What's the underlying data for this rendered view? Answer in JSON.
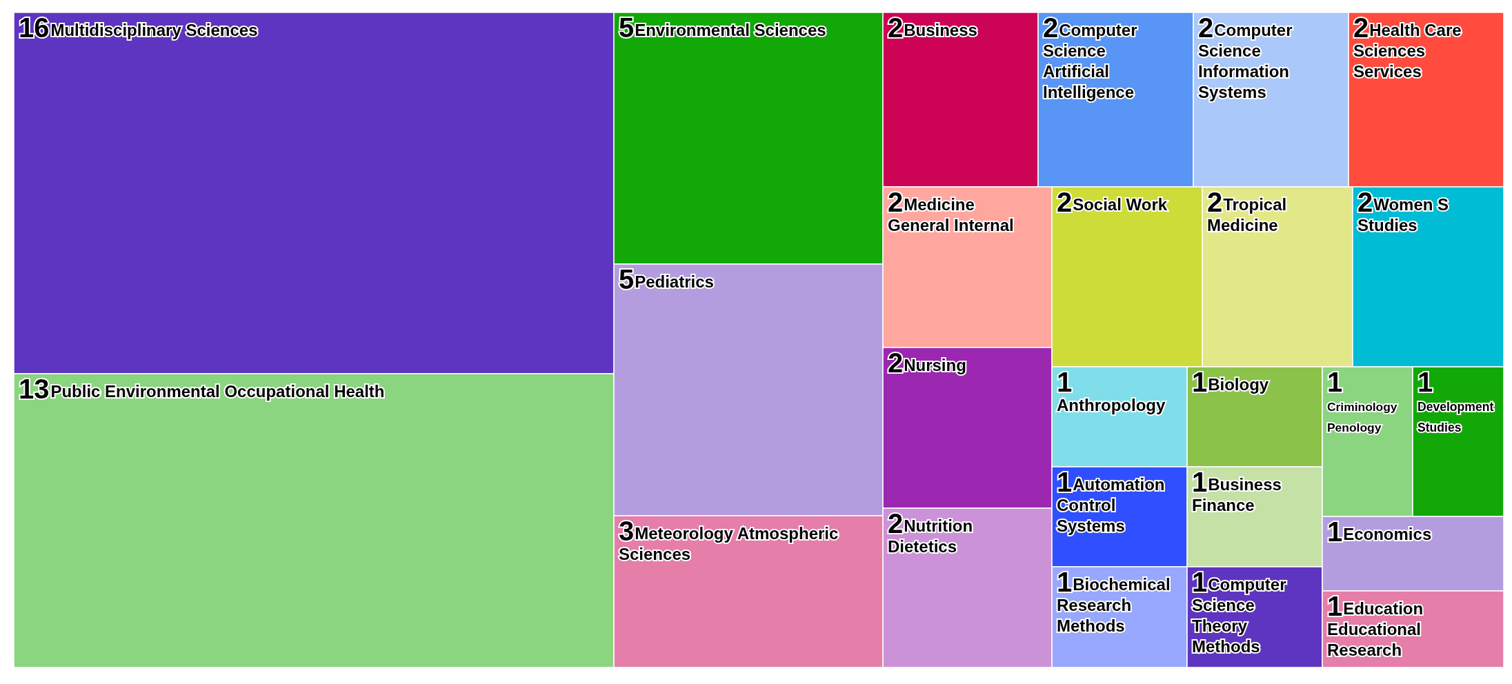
{
  "chart_data": {
    "type": "other",
    "categories": [
      "Multidisciplinary Sciences",
      "Public Environmental Occupational Health",
      "Environmental Sciences",
      "Pediatrics",
      "Meteorology Atmospheric Sciences",
      "Business",
      "Computer Science Artificial Intelligence",
      "Computer Science Information Systems",
      "Health Care Sciences Services",
      "Medicine General Internal",
      "Nursing",
      "Nutrition Dietetics",
      "Social Work",
      "Tropical Medicine",
      "Women S Studies",
      "Anthropology",
      "Automation Control Systems",
      "Biochemical Research Methods",
      "Biology",
      "Business Finance",
      "Computer Science Theory Methods",
      "Criminology Penology",
      "Development Studies",
      "Economics",
      "Education Educational Research"
    ],
    "values": [
      16,
      13,
      5,
      5,
      3,
      2,
      2,
      2,
      2,
      2,
      2,
      2,
      2,
      2,
      2,
      1,
      1,
      1,
      1,
      1,
      1,
      1,
      1,
      1,
      1
    ],
    "colors": [
      "#5e35c0",
      "#8bd581",
      "#12a808",
      "#b39ddf",
      "#e57ea8",
      "#cd0355",
      "#5895f4",
      "#aac8f9",
      "#ff4c3f",
      "#ffa79f",
      "#9c27b0",
      "#cc92d7",
      "#cddc39",
      "#e2e887",
      "#00bcd4",
      "#80deea",
      "#304ffe",
      "#98a8ff",
      "#8bc34a",
      "#c5e1a5",
      "#5e35c0",
      "#8bd581",
      "#12a808",
      "#b39ddf",
      "#e57ea8"
    ],
    "data_labels": true
  }
}
